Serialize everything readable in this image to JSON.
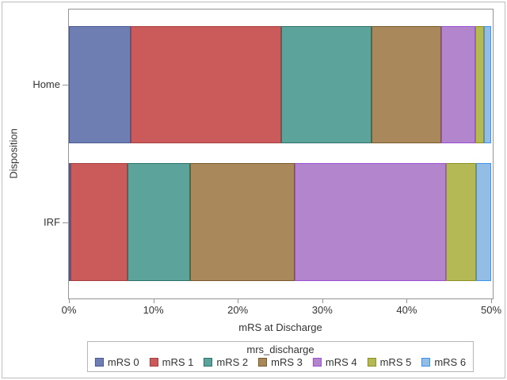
{
  "chart_data": {
    "type": "bar",
    "orientation": "horizontal",
    "stacked": true,
    "title": "",
    "xlabel": "mRS at Discharge",
    "ylabel": "Disposition",
    "xlim": [
      0,
      50
    ],
    "x_ticks": [
      {
        "value": 0,
        "label": "0%"
      },
      {
        "value": 10,
        "label": "10%"
      },
      {
        "value": 20,
        "label": "20%"
      },
      {
        "value": 30,
        "label": "30%"
      },
      {
        "value": 40,
        "label": "40%"
      },
      {
        "value": 50,
        "label": "50%"
      }
    ],
    "grid": false,
    "categories": [
      "Home",
      "IRF"
    ],
    "series": [
      {
        "name": "mRS 0",
        "color": "#6F7EB2",
        "border_color": "#4A5894",
        "values": [
          7.3,
          0.2
        ]
      },
      {
        "name": "mRS 1",
        "color": "#CB5B5B",
        "border_color": "#A93E3E",
        "values": [
          17.8,
          6.7
        ]
      },
      {
        "name": "mRS 2",
        "color": "#5BA39B",
        "border_color": "#2C746B",
        "values": [
          10.7,
          7.5
        ]
      },
      {
        "name": "mRS 3",
        "color": "#A9885C",
        "border_color": "#7A5A2B",
        "values": [
          8.3,
          12.3
        ]
      },
      {
        "name": "mRS 4",
        "color": "#B285CC",
        "border_color": "#9C51D4",
        "values": [
          4.0,
          18.0
        ]
      },
      {
        "name": "mRS 5",
        "color": "#B4B855",
        "border_color": "#8C9023",
        "values": [
          1.1,
          3.5
        ]
      },
      {
        "name": "mRS 6",
        "color": "#94BDE5",
        "border_color": "#3E94E8",
        "values": [
          0.8,
          1.8
        ]
      }
    ],
    "legend": {
      "title": "mrs_discharge",
      "position": "bottom"
    }
  }
}
